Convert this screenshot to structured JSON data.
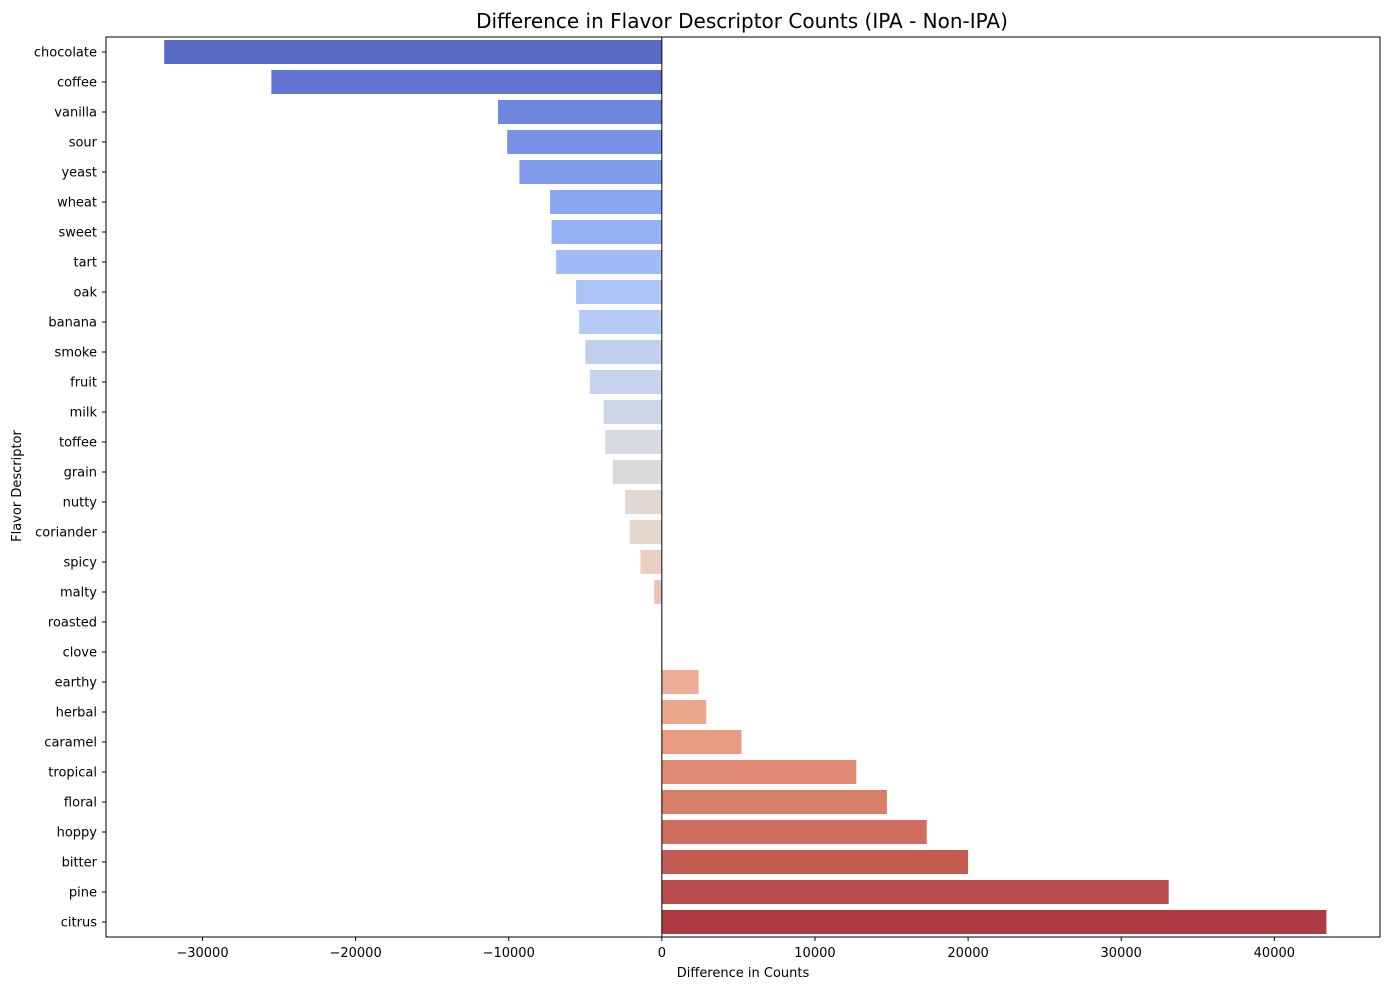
{
  "chart_data": {
    "type": "bar",
    "orientation": "horizontal",
    "title": "Difference in Flavor Descriptor Counts (IPA - Non-IPA)",
    "xlabel": "Difference in Counts",
    "ylabel": "Flavor Descriptor",
    "xlim": [
      -36300,
      46900
    ],
    "xticks": [
      -30000,
      -20000,
      -10000,
      0,
      10000,
      20000,
      30000,
      40000
    ],
    "xtick_labels": [
      "−30000",
      "−20000",
      "−10000",
      "0",
      "10000",
      "20000",
      "30000",
      "40000"
    ],
    "grid": false,
    "zero_line": true,
    "colormap": "coolwarm",
    "categories": [
      "chocolate",
      "coffee",
      "vanilla",
      "sour",
      "yeast",
      "wheat",
      "sweet",
      "tart",
      "oak",
      "banana",
      "smoke",
      "fruit",
      "milk",
      "toffee",
      "grain",
      "nutty",
      "coriander",
      "spicy",
      "malty",
      "roasted",
      "clove",
      "earthy",
      "herbal",
      "caramel",
      "tropical",
      "floral",
      "hoppy",
      "bitter",
      "pine",
      "citrus"
    ],
    "values": [
      -32500,
      -25500,
      -10700,
      -10100,
      -9300,
      -7300,
      -7200,
      -6900,
      -5600,
      -5400,
      -5000,
      -4700,
      -3800,
      -3700,
      -3200,
      -2400,
      -2100,
      -1400,
      -500,
      0,
      0,
      2400,
      2900,
      5200,
      12700,
      14700,
      17300,
      20000,
      33100,
      43400
    ],
    "colors": [
      "#5a6bc5",
      "#6275d3",
      "#6e86de",
      "#7792e6",
      "#819ceb",
      "#8aa7f1",
      "#96b0f4",
      "#a1bbf7",
      "#adc4f8",
      "#b5caf6",
      "#bfd1f1",
      "#c6d4ee",
      "#ccd8ea",
      "#d5dae3",
      "#dadada",
      "#e0d8d3",
      "#e6d7cc",
      "#e9d0c2",
      "#ebc5b4",
      "#edbba7",
      "#eeb19d",
      "#edad97",
      "#eba88e",
      "#e89b81",
      "#e18b74",
      "#d77f69",
      "#cf6e5e",
      "#c45c53",
      "#b94e4c",
      "#b03a42"
    ]
  }
}
